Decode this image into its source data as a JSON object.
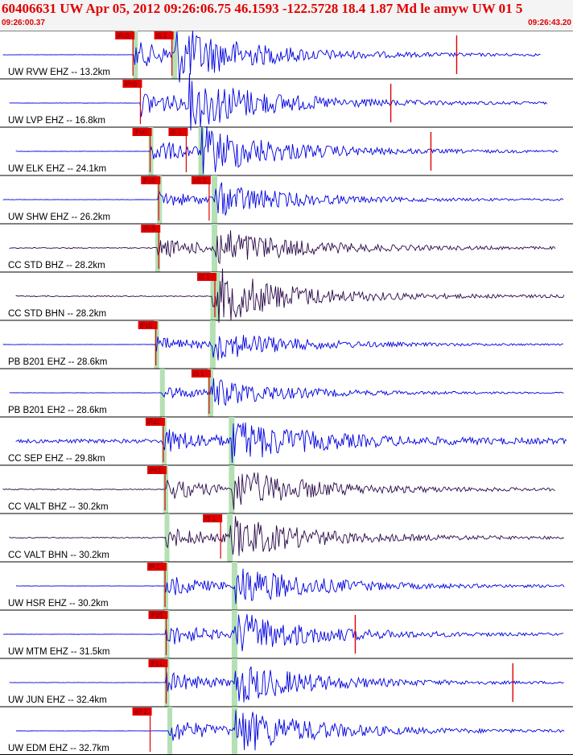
{
  "header": {
    "title": "60406631 UW Apr 05, 2012 09:26:06.75   46.1593 -122.5728 18.4 1.87 Md le amyw UW 01   5",
    "start_time": "09:26:00.37",
    "end_time": "09:26:43.20"
  },
  "chart_data": {
    "type": "seismogram",
    "time_range": [
      "09:26:00.37",
      "09:26:43.20"
    ],
    "colors": {
      "vertical": "#0000e0",
      "horizontal": "#2a0a4a",
      "pick": "#e00000",
      "band": "#b4e0b4"
    },
    "traces": [
      {
        "label": "UW RVW EHZ -- 13.2km",
        "color": "#0000e0",
        "onset": 0.235,
        "s_arrival": 0.305,
        "amp": 0.95,
        "noise": 0.01,
        "end": 0.945,
        "picks": [
          {
            "label": "iPc0",
            "pos": 0.232
          },
          {
            "label": "iS 1",
            "pos": 0.3
          }
        ],
        "spike": 0.797,
        "band": true
      },
      {
        "label": "UW LVP EHZ -- 16.8km",
        "color": "#0000e0",
        "onset": 0.245,
        "s_arrival": 0.33,
        "amp": 0.95,
        "noise": 0.01,
        "end": 0.955,
        "picks": [
          {
            "label": "iPc0",
            "pos": 0.245
          }
        ],
        "spike": 0.682,
        "band": false
      },
      {
        "label": "UW ELK EHZ -- 24.1km",
        "color": "#0000e0",
        "onset": 0.262,
        "s_arrival": 0.352,
        "amp": 0.85,
        "noise": 0.01,
        "end": 0.975,
        "picks": [
          {
            "label": "iPc0",
            "pos": 0.262
          },
          {
            "label": "iS 1",
            "pos": 0.325
          }
        ],
        "spike": 0.752,
        "band": true
      },
      {
        "label": "UW SHW EHZ -- 26.2km",
        "color": "#0000e0",
        "onset": 0.277,
        "s_arrival": 0.375,
        "amp": 0.6,
        "noise": 0.01,
        "end": 0.985,
        "picks": [
          {
            "label": "iPc0",
            "pos": 0.277
          },
          {
            "label": "eS 1",
            "pos": 0.365
          }
        ],
        "spike": null,
        "band": true
      },
      {
        "label": "CC STD BHZ -- 28.2km",
        "color": "#2a0a4a",
        "onset": 0.274,
        "s_arrival": 0.375,
        "amp": 0.7,
        "noise": 0.03,
        "end": 0.97,
        "picks": [
          {
            "label": "iPc0",
            "pos": 0.277
          }
        ],
        "spike": null,
        "band": true
      },
      {
        "label": "CC STD BHN -- 28.2km",
        "color": "#2a0a4a",
        "onset": 0.37,
        "s_arrival": 0.38,
        "amp": 0.75,
        "noise": 0.03,
        "end": 0.985,
        "picks": [
          {
            "label": "iS 1",
            "pos": 0.375
          }
        ],
        "spike": null,
        "band": true
      },
      {
        "label": "PB B201 EHZ -- 28.6km",
        "color": "#0000e0",
        "onset": 0.272,
        "s_arrival": 0.372,
        "amp": 0.55,
        "noise": 0.01,
        "end": 0.985,
        "picks": [
          {
            "label": "iPc0",
            "pos": 0.272
          }
        ],
        "spike": null,
        "band": true
      },
      {
        "label": "PB B201 EH2 -- 28.6km",
        "color": "#0000e0",
        "onset": 0.282,
        "s_arrival": 0.368,
        "amp": 0.5,
        "noise": 0.01,
        "end": 0.985,
        "picks": [
          {
            "label": "iS 1",
            "pos": 0.365
          }
        ],
        "spike": null,
        "band": true
      },
      {
        "label": "CC SEP EHZ -- 29.8km",
        "color": "#0000e0",
        "onset": 0.285,
        "s_arrival": 0.405,
        "amp": 0.75,
        "noise": 0.12,
        "end": 0.99,
        "picks": [
          {
            "label": "iPd1",
            "pos": 0.285
          }
        ],
        "spike": null,
        "band": true
      },
      {
        "label": "CC VALT BHZ -- 30.2km",
        "color": "#2a0a4a",
        "onset": 0.288,
        "s_arrival": 0.405,
        "amp": 0.75,
        "noise": 0.03,
        "end": 0.97,
        "picks": [
          {
            "label": "iPc1",
            "pos": 0.288
          }
        ],
        "spike": null,
        "band": true
      },
      {
        "label": "CC VALT BHN -- 30.2km",
        "color": "#2a0a4a",
        "onset": 0.29,
        "s_arrival": 0.402,
        "amp": 0.75,
        "noise": 0.03,
        "end": 0.985,
        "picks": [
          {
            "label": "iS 1",
            "pos": 0.385
          }
        ],
        "spike": null,
        "band": true
      },
      {
        "label": "UW HSR EHZ -- 30.2km",
        "color": "#0000e0",
        "onset": 0.288,
        "s_arrival": 0.41,
        "amp": 0.75,
        "noise": 0.01,
        "end": 0.985,
        "picks": [
          {
            "label": "iP 1",
            "pos": 0.288
          }
        ],
        "spike": null,
        "band": true
      },
      {
        "label": "UW MTM EHZ -- 31.5km",
        "color": "#0000e0",
        "onset": 0.29,
        "s_arrival": 0.41,
        "amp": 0.8,
        "noise": 0.01,
        "end": 0.985,
        "picks": [
          {
            "label": "iPd1",
            "pos": 0.29
          }
        ],
        "spike": 0.62,
        "band": true
      },
      {
        "label": "UW JUN EHZ -- 32.4km",
        "color": "#0000e0",
        "onset": 0.29,
        "s_arrival": 0.41,
        "amp": 0.75,
        "noise": 0.01,
        "end": 0.985,
        "picks": [
          {
            "label": "iPc1",
            "pos": 0.29
          }
        ],
        "spike": 0.895,
        "band": true
      },
      {
        "label": "UW EDM EHZ -- 32.7km",
        "color": "#0000e0",
        "onset": 0.295,
        "s_arrival": 0.41,
        "amp": 0.85,
        "noise": 0.01,
        "end": 0.985,
        "picks": [
          {
            "label": "eP 2",
            "pos": 0.262
          }
        ],
        "spike": null,
        "band": true
      }
    ]
  }
}
